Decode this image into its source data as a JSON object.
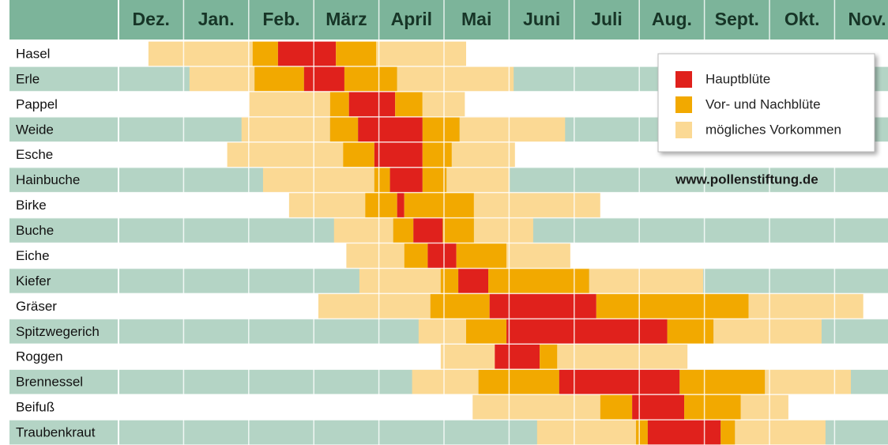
{
  "chart_data": {
    "type": "gantt",
    "months": [
      "Dez.",
      "Jan.",
      "Feb.",
      "März",
      "April",
      "Mai",
      "Juni",
      "Juli",
      "Aug.",
      "Sept.",
      "Okt.",
      "Nov."
    ],
    "xlim": [
      0,
      12
    ],
    "xticks": [
      0,
      1,
      2,
      3,
      4,
      5,
      6,
      7,
      8,
      9,
      10,
      11,
      12
    ],
    "legend": [
      {
        "name": "Hauptblüte",
        "color": "#e0211c"
      },
      {
        "name": "Vor- und Nachblüte",
        "color": "#f2a900"
      },
      {
        "name": "mögliches Vorkommen",
        "color": "#fbd994"
      }
    ],
    "url": "www.pollenstiftung.de",
    "rows": [
      {
        "name": "Hasel",
        "segments": [
          [
            0.46,
            2.06,
            2
          ],
          [
            2.06,
            2.45,
            1
          ],
          [
            2.45,
            3.34,
            0
          ],
          [
            3.34,
            3.96,
            1
          ],
          [
            3.96,
            5.34,
            2
          ]
        ]
      },
      {
        "name": "Erle",
        "segments": [
          [
            1.09,
            2.09,
            2
          ],
          [
            2.09,
            2.85,
            1
          ],
          [
            2.85,
            3.47,
            0
          ],
          [
            3.47,
            4.28,
            1
          ],
          [
            4.28,
            6.07,
            2
          ]
        ]
      },
      {
        "name": "Pappel",
        "segments": [
          [
            2.01,
            3.25,
            2
          ],
          [
            3.25,
            3.54,
            1
          ],
          [
            3.54,
            4.25,
            0
          ],
          [
            4.25,
            4.67,
            1
          ],
          [
            4.67,
            5.32,
            2
          ]
        ]
      },
      {
        "name": "Weide",
        "segments": [
          [
            1.89,
            3.25,
            2
          ],
          [
            3.25,
            3.68,
            1
          ],
          [
            3.68,
            4.67,
            0
          ],
          [
            4.67,
            5.24,
            1
          ],
          [
            5.24,
            6.86,
            2
          ]
        ]
      },
      {
        "name": "Esche",
        "segments": [
          [
            1.67,
            3.45,
            2
          ],
          [
            3.45,
            3.93,
            1
          ],
          [
            3.93,
            4.67,
            0
          ],
          [
            4.67,
            5.12,
            1
          ],
          [
            5.12,
            6.09,
            2
          ]
        ]
      },
      {
        "name": "Hainbuche",
        "segments": [
          [
            2.22,
            3.93,
            2
          ],
          [
            3.93,
            4.17,
            1
          ],
          [
            4.17,
            4.67,
            0
          ],
          [
            4.67,
            5.04,
            1
          ],
          [
            5.04,
            6.01,
            2
          ]
        ]
      },
      {
        "name": "Birke",
        "segments": [
          [
            2.62,
            3.79,
            2
          ],
          [
            3.79,
            4.28,
            1
          ],
          [
            4.28,
            4.39,
            0
          ],
          [
            4.39,
            5.46,
            1
          ],
          [
            5.46,
            7.4,
            2
          ]
        ]
      },
      {
        "name": "Buche",
        "segments": [
          [
            3.31,
            4.22,
            2
          ],
          [
            4.22,
            4.53,
            1
          ],
          [
            4.53,
            4.98,
            0
          ],
          [
            4.98,
            5.46,
            1
          ],
          [
            5.46,
            6.37,
            2
          ]
        ]
      },
      {
        "name": "Eiche",
        "segments": [
          [
            3.5,
            4.39,
            2
          ],
          [
            4.39,
            4.75,
            1
          ],
          [
            4.75,
            5.19,
            0
          ],
          [
            5.19,
            5.96,
            1
          ],
          [
            5.96,
            6.94,
            2
          ]
        ]
      },
      {
        "name": "Kiefer",
        "segments": [
          [
            3.7,
            4.95,
            2
          ],
          [
            4.95,
            5.22,
            1
          ],
          [
            5.22,
            5.68,
            0
          ],
          [
            5.68,
            7.23,
            1
          ],
          [
            7.23,
            8.98,
            2
          ]
        ]
      },
      {
        "name": "Gräser",
        "segments": [
          [
            3.07,
            4.79,
            2
          ],
          [
            4.79,
            5.7,
            1
          ],
          [
            5.7,
            7.34,
            0
          ],
          [
            7.34,
            9.68,
            1
          ],
          [
            9.68,
            11.44,
            2
          ]
        ]
      },
      {
        "name": "Spitzwegerich",
        "segments": [
          [
            4.61,
            5.34,
            2
          ],
          [
            5.34,
            5.96,
            1
          ],
          [
            5.96,
            8.43,
            0
          ],
          [
            8.43,
            9.14,
            1
          ],
          [
            9.14,
            10.8,
            2
          ]
        ]
      },
      {
        "name": "Roggen",
        "segments": [
          [
            4.95,
            5.78,
            2
          ],
          [
            5.78,
            6.47,
            0
          ],
          [
            6.47,
            6.74,
            1
          ],
          [
            6.74,
            8.74,
            2
          ]
        ]
      },
      {
        "name": "Brennessel",
        "segments": [
          [
            4.51,
            5.53,
            2
          ],
          [
            5.53,
            6.77,
            1
          ],
          [
            6.77,
            8.62,
            0
          ],
          [
            8.62,
            9.93,
            1
          ],
          [
            9.93,
            11.25,
            2
          ]
        ]
      },
      {
        "name": "Beifuß",
        "segments": [
          [
            5.44,
            7.4,
            2
          ],
          [
            7.4,
            7.89,
            1
          ],
          [
            7.89,
            8.69,
            0
          ],
          [
            8.69,
            9.56,
            1
          ],
          [
            9.56,
            10.29,
            2
          ]
        ]
      },
      {
        "name": "Traubenkraut",
        "segments": [
          [
            6.43,
            7.95,
            2
          ],
          [
            7.95,
            8.13,
            1
          ],
          [
            8.13,
            9.25,
            0
          ],
          [
            9.25,
            9.47,
            1
          ],
          [
            9.47,
            10.86,
            2
          ]
        ]
      }
    ]
  }
}
